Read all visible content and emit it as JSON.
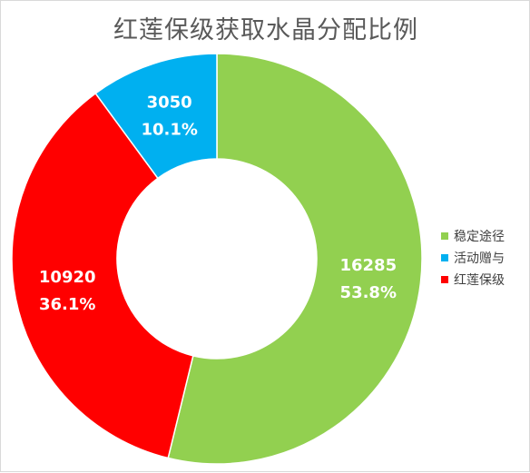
{
  "chart_data": {
    "type": "pie",
    "donut": true,
    "title": "红莲保级获取水晶分配比例",
    "slices": [
      {
        "name": "稳定途径",
        "value": 16285,
        "percent_label": "53.8%",
        "color": "#92d050"
      },
      {
        "name": "红莲保级",
        "value": 10920,
        "percent_label": "36.1%",
        "color": "#ff0000"
      },
      {
        "name": "活动赠与",
        "value": 3050,
        "percent_label": "10.1%",
        "color": "#00b0f0"
      }
    ],
    "legend": {
      "placement": "right",
      "entries": [
        {
          "name": "稳定途径",
          "color": "#92d050"
        },
        {
          "name": "活动赠与",
          "color": "#00b0f0"
        },
        {
          "name": "红莲保级",
          "color": "#ff0000"
        }
      ]
    }
  }
}
